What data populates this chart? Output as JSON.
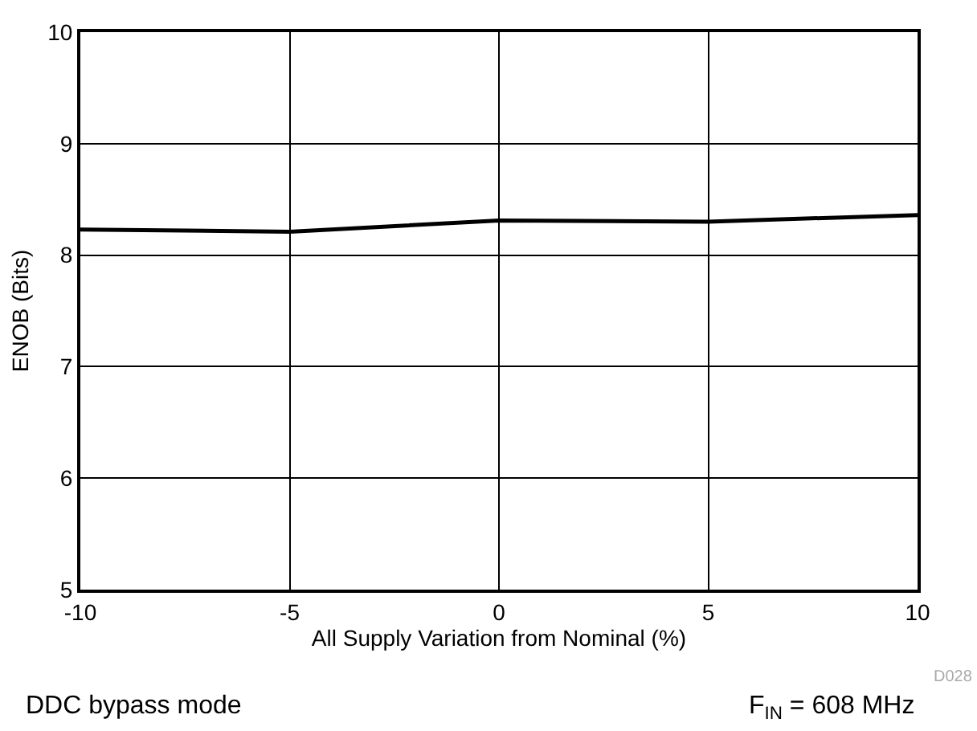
{
  "chart_data": {
    "type": "line",
    "xlabel": "All Supply Variation from Nominal (%)",
    "ylabel": "ENOB (Bits)",
    "x": [
      -10,
      -5,
      0,
      5,
      10
    ],
    "series": [
      {
        "color": "#000000",
        "values": [
          8.23,
          8.21,
          8.31,
          8.3,
          8.36
        ]
      }
    ],
    "xlim": [
      -10,
      10
    ],
    "xticks": [
      -10,
      -5,
      0,
      5,
      10
    ],
    "ylim": [
      5,
      10
    ],
    "yticks": [
      5,
      6,
      7,
      8,
      9,
      10
    ],
    "grid": true,
    "marker": "none",
    "line_style": "solid",
    "annotations": [
      "D028",
      "DDC bypass mode",
      "F$_{IN}$ = 608 MHz"
    ]
  }
}
